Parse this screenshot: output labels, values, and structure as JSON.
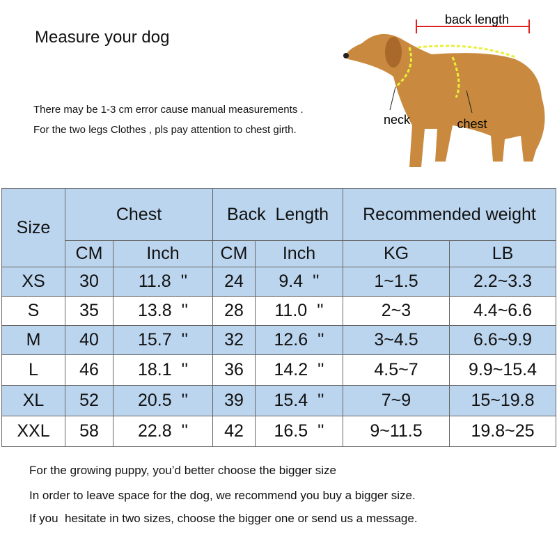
{
  "header": {
    "title": "Measure your dog",
    "notes": [
      "There may be 1-3 cm error cause manual measurements .",
      "For the two legs Clothes , pls pay attention to chest girth."
    ]
  },
  "diagram": {
    "back_length": "back length",
    "neck": "neck",
    "chest": "chest"
  },
  "table": {
    "groups": [
      "Size",
      "Chest",
      "Back  Length",
      "Recommended weight"
    ],
    "subheaders": [
      "CM",
      "Inch",
      "CM",
      "Inch",
      "KG",
      "LB"
    ],
    "rows": [
      [
        "XS",
        "30",
        "11.8  ''",
        "24",
        "9.4  ''",
        "1~1.5",
        "2.2~3.3"
      ],
      [
        "S",
        "35",
        "13.8  ''",
        "28",
        "11.0  ''",
        "2~3",
        "4.4~6.6"
      ],
      [
        "M",
        "40",
        "15.7  ''",
        "32",
        "12.6  ''",
        "3~4.5",
        "6.6~9.9"
      ],
      [
        "L",
        "46",
        "18.1  ''",
        "36",
        "14.2  ''",
        "4.5~7",
        "9.9~15.4"
      ],
      [
        "XL",
        "52",
        "20.5  ''",
        "39",
        "15.4  ''",
        "7~9",
        "15~19.8"
      ],
      [
        "XXL",
        "58",
        "22.8  ''",
        "42",
        "16.5  ''",
        "9~11.5",
        "19.8~25"
      ]
    ]
  },
  "footer": [
    "For the growing puppy, you’d better choose the bigger size",
    "In order to leave space for the dog, we recommend you buy a bigger size.",
    "If you  hesitate in two sizes, choose the bigger one or send us a message."
  ]
}
